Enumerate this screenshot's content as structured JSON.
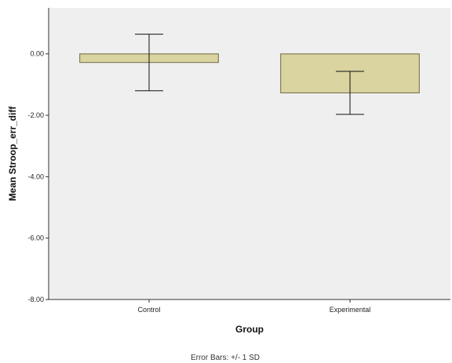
{
  "chart_data": {
    "type": "bar",
    "categories": [
      "Control",
      "Experimental"
    ],
    "series": [
      {
        "values": [
          -0.28,
          -1.27
        ],
        "error_sd": [
          0.92,
          0.7
        ]
      }
    ],
    "xlabel": "Group",
    "ylabel": "Mean Stroop_err_diff",
    "ylim": [
      -8.0,
      1.5
    ],
    "yticks": [
      0.0,
      -2.0,
      -4.0,
      -6.0,
      -8.0
    ],
    "ytick_labels": [
      "0.00",
      "-2.00",
      "-4.00",
      "-6.00",
      "-8.00"
    ],
    "footnote": "Error Bars: +/- 1 SD",
    "grid": false,
    "legend": "none"
  },
  "colors": {
    "plot_background": "#efefef",
    "bar_fill": "#d9d4a0",
    "bar_stroke": "#6e6a45",
    "axis": "#333333",
    "error_bar": "#111111"
  }
}
